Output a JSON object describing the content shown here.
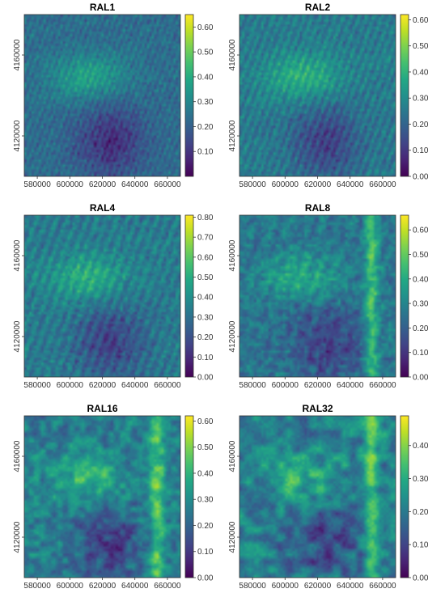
{
  "chart_data": [
    {
      "type": "heatmap",
      "title": "RAL1",
      "x_ticks": [
        580000,
        600000,
        620000,
        640000,
        660000
      ],
      "y_ticks": [
        4120000,
        4160000
      ],
      "colorbar": {
        "colormap": "viridis",
        "min": 0.0,
        "max": 0.65,
        "ticks": [
          0.1,
          0.2,
          0.3,
          0.4,
          0.5,
          0.6
        ],
        "tick_labels": [
          "0.10",
          "0.20",
          "0.30",
          "0.40",
          "0.50",
          "0.60"
        ]
      }
    },
    {
      "type": "heatmap",
      "title": "RAL2",
      "x_ticks": [
        580000,
        600000,
        620000,
        640000,
        660000
      ],
      "y_ticks": [
        4120000,
        4160000
      ],
      "colorbar": {
        "colormap": "viridis",
        "min": 0.0,
        "max": 0.62,
        "ticks": [
          0.0,
          0.1,
          0.2,
          0.3,
          0.4,
          0.5,
          0.6
        ],
        "tick_labels": [
          "0.00",
          "0.10",
          "0.20",
          "0.30",
          "0.40",
          "0.50",
          "0.60"
        ]
      }
    },
    {
      "type": "heatmap",
      "title": "RAL4",
      "x_ticks": [
        580000,
        600000,
        620000,
        640000,
        660000
      ],
      "y_ticks": [
        4120000,
        4160000
      ],
      "colorbar": {
        "colormap": "viridis",
        "min": 0.0,
        "max": 0.81,
        "ticks": [
          0.0,
          0.1,
          0.2,
          0.3,
          0.4,
          0.5,
          0.6,
          0.7,
          0.8
        ],
        "tick_labels": [
          "0.00",
          "0.10",
          "0.20",
          "0.30",
          "0.40",
          "0.50",
          "0.60",
          "0.70",
          "0.80"
        ]
      }
    },
    {
      "type": "heatmap",
      "title": "RAL8",
      "x_ticks": [
        580000,
        600000,
        620000,
        640000,
        660000
      ],
      "y_ticks": [
        4120000,
        4160000
      ],
      "colorbar": {
        "colormap": "viridis",
        "min": 0.0,
        "max": 0.66,
        "ticks": [
          0.0,
          0.1,
          0.2,
          0.3,
          0.4,
          0.5,
          0.6
        ],
        "tick_labels": [
          "0.00",
          "0.10",
          "0.20",
          "0.30",
          "0.40",
          "0.50",
          "0.60"
        ]
      }
    },
    {
      "type": "heatmap",
      "title": "RAL16",
      "x_ticks": [
        580000,
        600000,
        620000,
        640000,
        660000
      ],
      "y_ticks": [
        4120000,
        4160000
      ],
      "colorbar": {
        "colormap": "viridis",
        "min": 0.0,
        "max": 0.62,
        "ticks": [
          0.0,
          0.1,
          0.2,
          0.3,
          0.4,
          0.5,
          0.6
        ],
        "tick_labels": [
          "0.00",
          "0.10",
          "0.20",
          "0.30",
          "0.40",
          "0.50",
          "0.60"
        ]
      }
    },
    {
      "type": "heatmap",
      "title": "RAL32",
      "x_ticks": [
        580000,
        600000,
        620000,
        640000,
        660000
      ],
      "y_ticks": [
        4120000,
        4160000
      ],
      "colorbar": {
        "colormap": "viridis",
        "min": 0.0,
        "max": 0.49,
        "ticks": [
          0.0,
          0.1,
          0.2,
          0.3,
          0.4
        ],
        "tick_labels": [
          "0.00",
          "0.10",
          "0.20",
          "0.30",
          "0.40"
        ]
      }
    }
  ]
}
